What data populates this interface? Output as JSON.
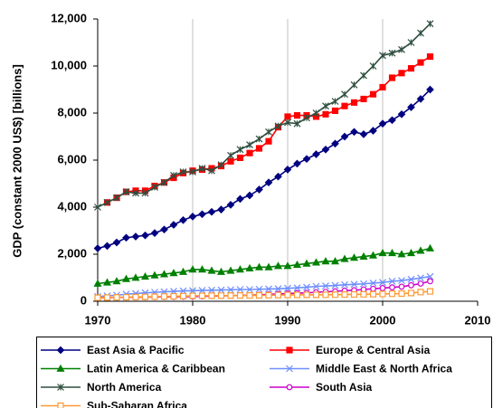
{
  "chart_data": {
    "type": "line",
    "y_label": "GDP (constant 2000 US$) [billions]",
    "x": [
      1970,
      1971,
      1972,
      1973,
      1974,
      1975,
      1976,
      1977,
      1978,
      1979,
      1980,
      1981,
      1982,
      1983,
      1984,
      1985,
      1986,
      1987,
      1988,
      1989,
      1990,
      1991,
      1992,
      1993,
      1994,
      1995,
      1996,
      1997,
      1998,
      1999,
      2000,
      2001,
      2002,
      2003,
      2004,
      2005
    ],
    "xlim": [
      1970,
      2010
    ],
    "xticks": [
      1970,
      1980,
      1990,
      2000,
      2010
    ],
    "ylim": [
      0,
      12000
    ],
    "yticks": [
      0,
      {
        "value": 2000,
        "label": "2,000"
      },
      {
        "value": 4000,
        "label": "4,000"
      },
      {
        "value": 6000,
        "label": "6,000"
      },
      {
        "value": 8000,
        "label": "8,000"
      },
      {
        "value": 10000,
        "label": "10,000"
      },
      {
        "value": 12000,
        "label": "12,000"
      }
    ],
    "grid": "x",
    "series": [
      {
        "name": "East Asia & Pacific",
        "color": "#000080",
        "marker": "diamond",
        "values": [
          2250,
          2350,
          2500,
          2700,
          2750,
          2800,
          2900,
          3050,
          3250,
          3450,
          3600,
          3700,
          3800,
          3900,
          4100,
          4350,
          4500,
          4750,
          5050,
          5300,
          5600,
          5850,
          6050,
          6250,
          6450,
          6700,
          7000,
          7200,
          7100,
          7250,
          7550,
          7700,
          7950,
          8250,
          8600,
          9000
        ]
      },
      {
        "name": "Europe & Central Asia",
        "color": "#ff0000",
        "marker": "square",
        "values": [
          null,
          4200,
          4400,
          4650,
          4700,
          4700,
          4900,
          5050,
          5250,
          5450,
          5550,
          5600,
          5650,
          5750,
          5950,
          6100,
          6300,
          6500,
          6800,
          7400,
          7850,
          7900,
          7900,
          7850,
          7950,
          8100,
          8300,
          8450,
          8600,
          8800,
          9100,
          9500,
          9700,
          9900,
          10150,
          10400
        ]
      },
      {
        "name": "Latin America & Caribbean",
        "color": "#008000",
        "marker": "triangle",
        "values": [
          750,
          800,
          850,
          950,
          1000,
          1050,
          1100,
          1150,
          1200,
          1250,
          1350,
          1350,
          1300,
          1250,
          1300,
          1350,
          1400,
          1450,
          1450,
          1500,
          1500,
          1550,
          1600,
          1650,
          1700,
          1700,
          1800,
          1850,
          1900,
          1950,
          2050,
          2050,
          2000,
          2050,
          2150,
          2250
        ]
      },
      {
        "name": "Middle East & North Africa",
        "color": "#6f8fff",
        "marker": "x",
        "values": [
          200,
          230,
          260,
          300,
          330,
          360,
          380,
          400,
          420,
          440,
          450,
          460,
          470,
          480,
          490,
          500,
          500,
          510,
          520,
          530,
          550,
          570,
          600,
          630,
          650,
          670,
          700,
          720,
          740,
          770,
          800,
          850,
          880,
          930,
          990,
          1050
        ]
      },
      {
        "name": "North America",
        "color": "#2f4f3f",
        "marker": "star",
        "values": [
          4000,
          4200,
          4400,
          4650,
          4600,
          4600,
          4850,
          5050,
          5350,
          5500,
          5500,
          5650,
          5550,
          5800,
          6200,
          6450,
          6650,
          6900,
          7200,
          7450,
          7600,
          7550,
          7800,
          8000,
          8300,
          8500,
          8800,
          9200,
          9600,
          10000,
          10450,
          10550,
          10700,
          11000,
          11400,
          11800
        ]
      },
      {
        "name": "South Asia",
        "color": "#cc00cc",
        "marker": "circle",
        "values": [
          150,
          155,
          160,
          165,
          170,
          175,
          180,
          185,
          190,
          195,
          200,
          210,
          220,
          230,
          240,
          250,
          260,
          275,
          290,
          310,
          330,
          345,
          360,
          380,
          400,
          420,
          450,
          470,
          500,
          530,
          560,
          590,
          620,
          680,
          750,
          850
        ]
      },
      {
        "name": "Sub-Saharan Africa",
        "color": "#ff9933",
        "marker": "open-square",
        "values": [
          150,
          158,
          165,
          172,
          180,
          187,
          194,
          200,
          210,
          220,
          230,
          233,
          236,
          238,
          240,
          243,
          246,
          250,
          257,
          263,
          270,
          271,
          272,
          272,
          275,
          280,
          285,
          290,
          295,
          300,
          310,
          318,
          327,
          350,
          390,
          420
        ]
      }
    ]
  }
}
